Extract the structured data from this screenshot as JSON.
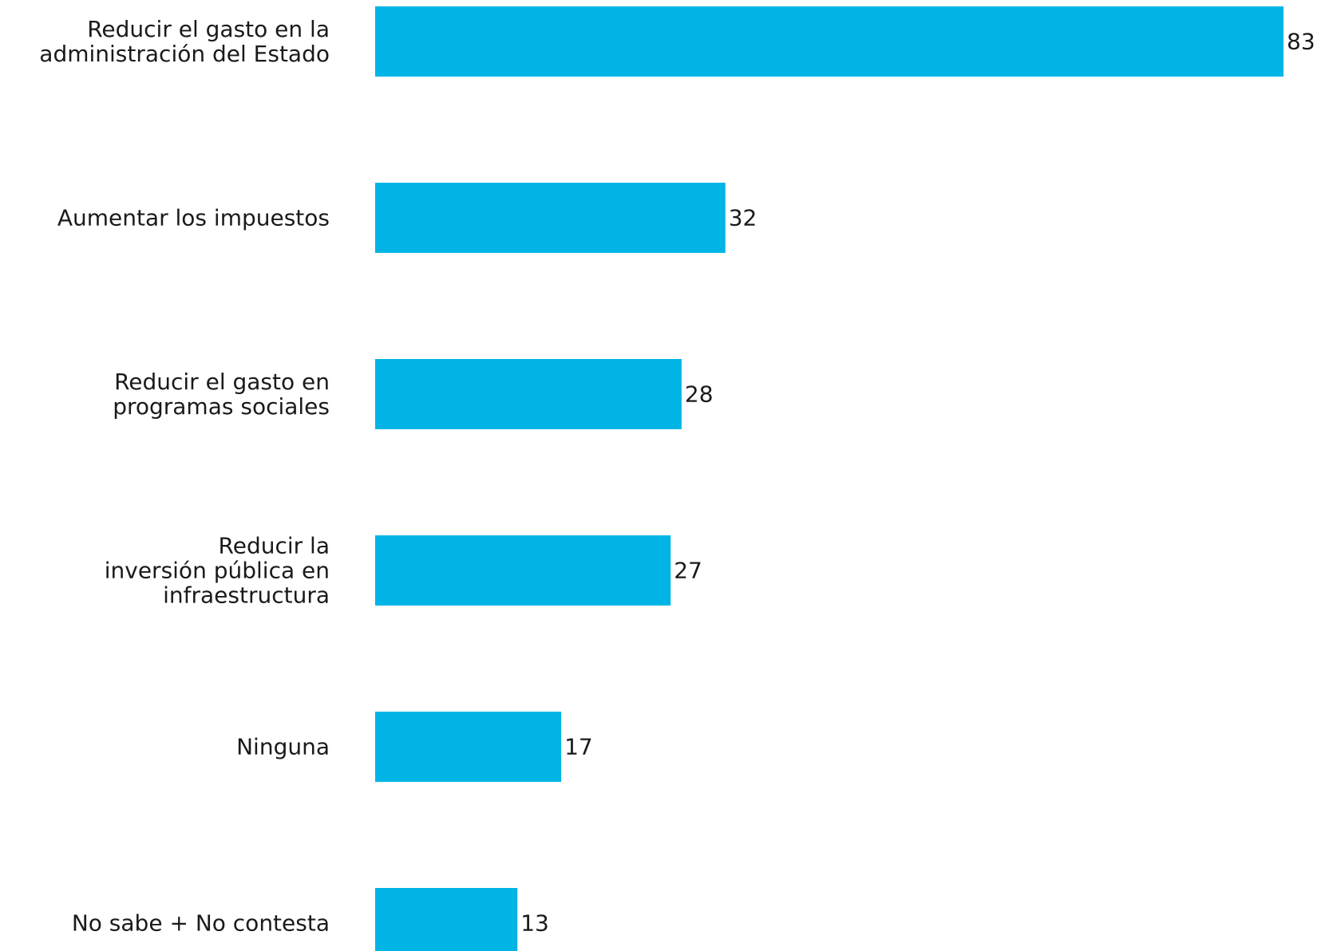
{
  "chart_data": {
    "type": "bar",
    "orientation": "horizontal",
    "categories": [
      "Reducir el gasto en la administración del Estado",
      "Aumentar los impuestos",
      "Reducir el gasto en programas sociales",
      "Reducir la inversión pública en infraestructura",
      "Ninguna",
      "No sabe + No contesta"
    ],
    "category_lines": [
      [
        "Reducir el gasto en la",
        "administración del Estado"
      ],
      [
        "Aumentar los impuestos"
      ],
      [
        "Reducir el gasto en",
        "programas sociales"
      ],
      [
        "Reducir la",
        "inversión pública en",
        "infraestructura"
      ],
      [
        "Ninguna"
      ],
      [
        "No sabe + No contesta"
      ]
    ],
    "values": [
      83,
      32,
      28,
      27,
      17,
      13
    ],
    "value_labels": [
      "83",
      "32",
      "28",
      "27",
      "17",
      "13"
    ],
    "xlim": [
      0,
      83
    ],
    "bar_color": "#00B5E6",
    "title": "",
    "xlabel": "",
    "ylabel": "",
    "grid": false,
    "legend": "none"
  }
}
